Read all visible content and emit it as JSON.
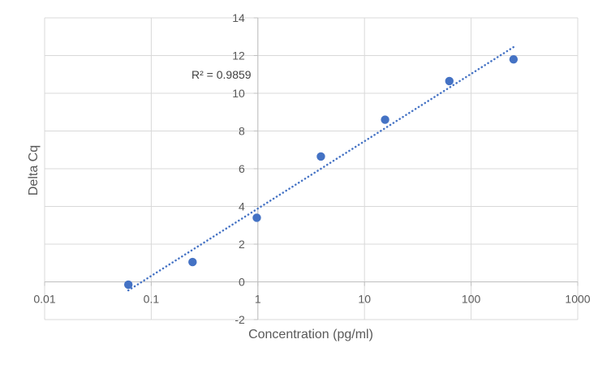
{
  "chart_data": {
    "type": "scatter",
    "title": "",
    "xlabel": "Concentration (pg/ml)",
    "ylabel": "Delta Cq",
    "x_scale": "log",
    "xlim": [
      0.01,
      1000
    ],
    "ylim": [
      -2,
      14
    ],
    "x_ticks": [
      0.01,
      0.1,
      1,
      10,
      100,
      1000
    ],
    "x_tick_labels": [
      "0.01",
      "0.1",
      "1",
      "10",
      "100",
      "1000"
    ],
    "y_ticks": [
      -2,
      0,
      2,
      4,
      6,
      8,
      10,
      12,
      14
    ],
    "y_tick_labels": [
      "-2",
      "0",
      "2",
      "4",
      "6",
      "8",
      "10",
      "12",
      "14"
    ],
    "grid": true,
    "legend": "none",
    "series": [
      {
        "points": [
          {
            "x": 0.061,
            "y": -0.15
          },
          {
            "x": 0.244,
            "y": 1.05
          },
          {
            "x": 0.977,
            "y": 3.4
          },
          {
            "x": 3.9,
            "y": 6.65
          },
          {
            "x": 15.6,
            "y": 8.6
          },
          {
            "x": 62.5,
            "y": 10.65
          },
          {
            "x": 250,
            "y": 11.8
          }
        ],
        "color": "#4472C4"
      }
    ],
    "trendline": {
      "kind": "logarithmic",
      "x_start": 0.061,
      "y_start": -0.45,
      "x_end": 250,
      "y_end": 12.45,
      "color": "#4472C4",
      "style": "dotted"
    },
    "annotations": [
      {
        "text": "R² = 0.9859"
      }
    ],
    "colors": {
      "gridline": "#d9d9d9",
      "axis": "#bfbfbf",
      "text": "#595959"
    }
  }
}
